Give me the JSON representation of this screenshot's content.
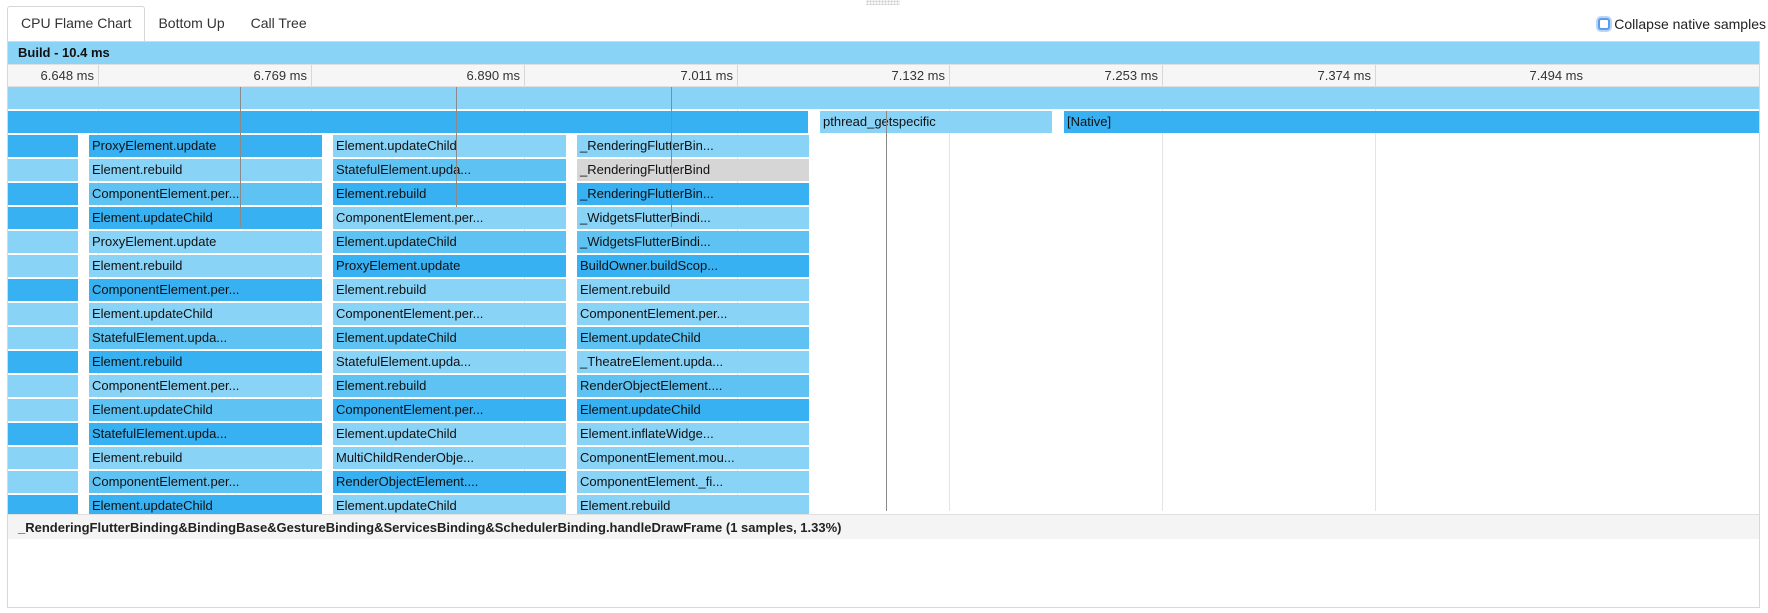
{
  "tabs": [
    {
      "label": "CPU Flame Chart",
      "active": true
    },
    {
      "label": "Bottom Up",
      "active": false
    },
    {
      "label": "Call Tree",
      "active": false
    }
  ],
  "collapse_native": {
    "label": "Collapse native samples",
    "checked": false
  },
  "header": {
    "title": "Build - 10.4 ms"
  },
  "timeline": {
    "ticks": [
      "6.648 ms",
      "6.769 ms",
      "6.890 ms",
      "7.011 ms",
      "7.132 ms",
      "7.253 ms",
      "7.374 ms",
      "7.494 ms"
    ]
  },
  "colors": {
    "light": "#89d3f7",
    "mid": "#5ec3f3",
    "dark": "#37b1f2",
    "selected": "#d6d6d6",
    "header": "#89d3f7"
  },
  "flame": {
    "row0": [
      {
        "label": "",
        "shade": "light"
      }
    ],
    "row1": [
      {
        "label": "",
        "shade": "dark"
      },
      {
        "label": "pthread_getspecific",
        "shade": "light"
      },
      {
        "label": "[Native]",
        "shade": "dark"
      }
    ],
    "columns": [
      {
        "labels": [
          "",
          "",
          "",
          "",
          "",
          "",
          "",
          "",
          "",
          "",
          "",
          "",
          "",
          "",
          "",
          ""
        ],
        "shades": [
          "dark",
          "light",
          "dark",
          "dark",
          "light",
          "light",
          "dark",
          "light",
          "light",
          "dark",
          "light",
          "light",
          "dark",
          "light",
          "light",
          "dark"
        ]
      },
      {
        "labels": [
          "ProxyElement.update",
          "Element.rebuild",
          "ComponentElement.per...",
          "Element.updateChild",
          "ProxyElement.update",
          "Element.rebuild",
          "ComponentElement.per...",
          "Element.updateChild",
          "StatefulElement.upda...",
          "Element.rebuild",
          "ComponentElement.per...",
          "Element.updateChild",
          "StatefulElement.upda...",
          "Element.rebuild",
          "ComponentElement.per...",
          "Element.updateChild"
        ],
        "shades": [
          "dark",
          "light",
          "mid",
          "dark",
          "light",
          "light",
          "dark",
          "light",
          "mid",
          "dark",
          "light",
          "mid",
          "dark",
          "light",
          "mid",
          "dark"
        ]
      },
      {
        "labels": [
          "Element.updateChild",
          "StatefulElement.upda...",
          "Element.rebuild",
          "ComponentElement.per...",
          "Element.updateChild",
          "ProxyElement.update",
          "Element.rebuild",
          "ComponentElement.per...",
          "Element.updateChild",
          "StatefulElement.upda...",
          "Element.rebuild",
          "ComponentElement.per...",
          "Element.updateChild",
          "MultiChildRenderObje...",
          "RenderObjectElement....",
          "Element.updateChild"
        ],
        "shades": [
          "light",
          "mid",
          "dark",
          "light",
          "mid",
          "dark",
          "light",
          "light",
          "mid",
          "light",
          "mid",
          "dark",
          "light",
          "light",
          "dark",
          "light"
        ]
      },
      {
        "labels": [
          "_RenderingFlutterBin...",
          "_RenderingFlutterBind",
          "_RenderingFlutterBin...",
          "_WidgetsFlutterBindi...",
          "_WidgetsFlutterBindi...",
          "BuildOwner.buildScop...",
          "Element.rebuild",
          "ComponentElement.per...",
          "Element.updateChild",
          "_TheatreElement.upda...",
          "RenderObjectElement....",
          "Element.updateChild",
          "Element.inflateWidge...",
          "ComponentElement.mou...",
          "ComponentElement._fi...",
          "Element.rebuild"
        ],
        "shades": [
          "light",
          "selected",
          "dark",
          "light",
          "mid",
          "dark",
          "light",
          "light",
          "mid",
          "light",
          "mid",
          "dark",
          "light",
          "light",
          "light",
          "light"
        ]
      }
    ]
  },
  "footer": {
    "text": "_RenderingFlutterBinding&BindingBase&GestureBinding&ServicesBinding&SchedulerBinding.handleDrawFrame (1 samples, 1.33%)"
  }
}
